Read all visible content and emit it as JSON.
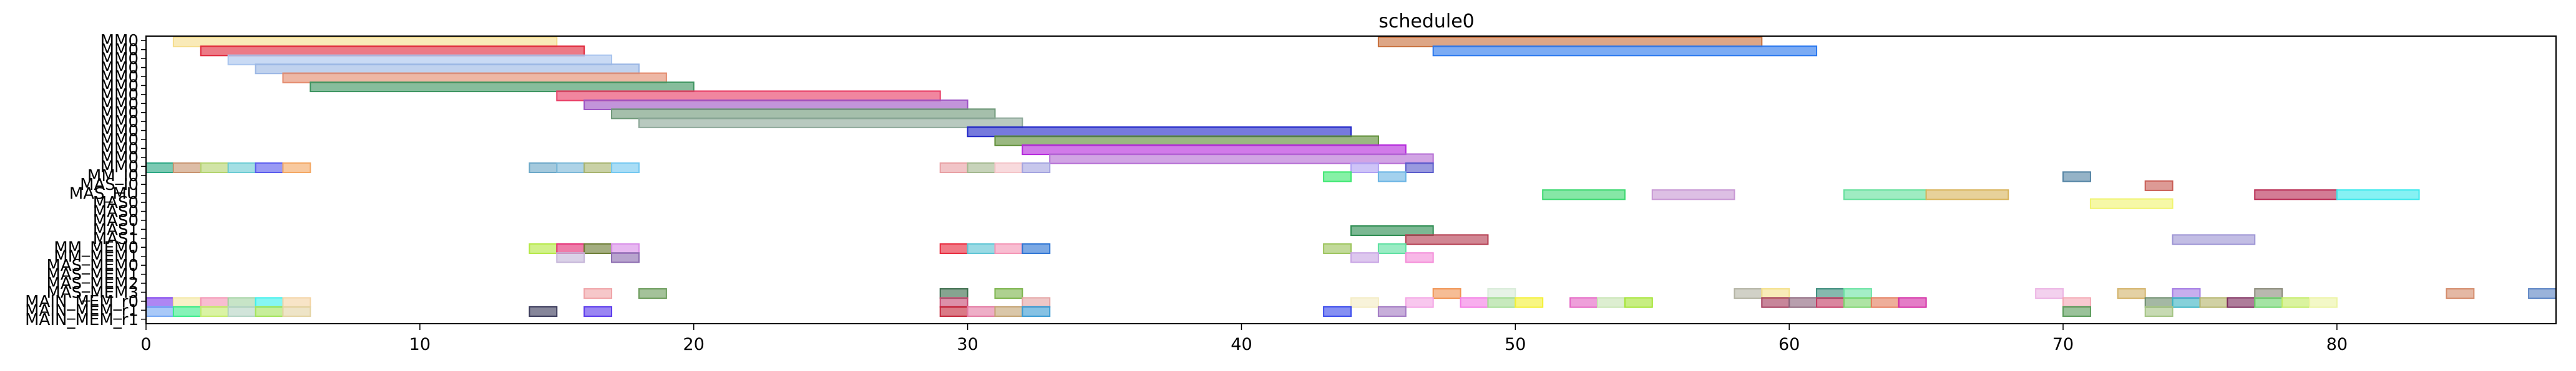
{
  "chart_data": {
    "type": "gantt",
    "title": "schedule0",
    "xlabel": "",
    "ylabel": "",
    "xlim": [
      0,
      88
    ],
    "x_ticks": [
      0,
      10,
      20,
      30,
      40,
      50,
      60,
      70,
      80
    ],
    "grid": false,
    "rows": [
      "MM0",
      "MM0",
      "MM0",
      "MM0",
      "MM0",
      "MM0",
      "MM0",
      "MM0",
      "MM0",
      "MM0",
      "MM0",
      "MM0",
      "MM0",
      "MM0",
      "MM0",
      "MM_I0",
      "MAS_I0",
      "MAS_MU",
      "MAS0",
      "MAS0",
      "MAS0",
      "MAS1",
      "MAS1",
      "MM_MEM0",
      "MM_MEM1",
      "MAS_MEM0",
      "MAS_MEM1",
      "MAS_MEM2",
      "MAS_MEM3",
      "MAIN_MEM_r0",
      "MAIN_MEM_r1",
      "MAIN_MEM_r1"
    ],
    "tasks": [
      {
        "row": 0,
        "start": 1,
        "end": 15,
        "color": "#f5dd8c"
      },
      {
        "row": 0,
        "start": 45,
        "end": 59,
        "color": "#c8703c"
      },
      {
        "row": 1,
        "start": 2,
        "end": 16,
        "color": "#e0283c"
      },
      {
        "row": 1,
        "start": 47,
        "end": 61,
        "color": "#2a78ee"
      },
      {
        "row": 2,
        "start": 3,
        "end": 17,
        "color": "#a8c4ee"
      },
      {
        "row": 3,
        "start": 4,
        "end": 18,
        "color": "#9ab6e4"
      },
      {
        "row": 4,
        "start": 5,
        "end": 19,
        "color": "#e48a6c"
      },
      {
        "row": 5,
        "start": 6,
        "end": 20,
        "color": "#3c9460"
      },
      {
        "row": 6,
        "start": 15,
        "end": 29,
        "color": "#e83c64"
      },
      {
        "row": 7,
        "start": 16,
        "end": 30,
        "color": "#9c52c4"
      },
      {
        "row": 8,
        "start": 17,
        "end": 31,
        "color": "#6e9878"
      },
      {
        "row": 9,
        "start": 18,
        "end": 32,
        "color": "#8ca898"
      },
      {
        "row": 10,
        "start": 30,
        "end": 44,
        "color": "#2228c8"
      },
      {
        "row": 11,
        "start": 31,
        "end": 45,
        "color": "#5c8c34"
      },
      {
        "row": 12,
        "start": 32,
        "end": 46,
        "color": "#b428dc"
      },
      {
        "row": 13,
        "start": 33,
        "end": 47,
        "color": "#b46cd4"
      },
      {
        "row": 14,
        "start": 0,
        "end": 1,
        "color": "#2ca884"
      },
      {
        "row": 14,
        "start": 1,
        "end": 2,
        "color": "#c89470"
      },
      {
        "row": 14,
        "start": 2,
        "end": 3,
        "color": "#b4d470"
      },
      {
        "row": 14,
        "start": 3,
        "end": 4,
        "color": "#6cccd4"
      },
      {
        "row": 14,
        "start": 4,
        "end": 5,
        "color": "#5a5cee"
      },
      {
        "row": 14,
        "start": 5,
        "end": 6,
        "color": "#f4a864"
      },
      {
        "row": 14,
        "start": 14,
        "end": 15,
        "color": "#6ca8c8"
      },
      {
        "row": 14,
        "start": 15,
        "end": 16,
        "color": "#7cb8d8"
      },
      {
        "row": 14,
        "start": 16,
        "end": 17,
        "color": "#a8b470"
      },
      {
        "row": 14,
        "start": 17,
        "end": 18,
        "color": "#74c8f0"
      },
      {
        "row": 14,
        "start": 29,
        "end": 30,
        "color": "#e8a0a4"
      },
      {
        "row": 14,
        "start": 30,
        "end": 31,
        "color": "#a4b890"
      },
      {
        "row": 14,
        "start": 31,
        "end": 32,
        "color": "#f4c4c8"
      },
      {
        "row": 14,
        "start": 32,
        "end": 33,
        "color": "#a4a4e0"
      },
      {
        "row": 14,
        "start": 44,
        "end": 45,
        "color": "#b0a0f4"
      },
      {
        "row": 14,
        "start": 46,
        "end": 47,
        "color": "#5a5ccc"
      },
      {
        "row": 15,
        "start": 70,
        "end": 71,
        "color": "#5484a4"
      },
      {
        "row": 15,
        "start": 45,
        "end": 46,
        "color": "#6ab4e4"
      },
      {
        "row": 15,
        "start": 43,
        "end": 44,
        "color": "#3ce870"
      },
      {
        "row": 16,
        "start": 73,
        "end": 74,
        "color": "#c85c54"
      },
      {
        "row": 17,
        "start": 51,
        "end": 54,
        "color": "#3cd870"
      },
      {
        "row": 17,
        "start": 55,
        "end": 58,
        "color": "#c898d4"
      },
      {
        "row": 17,
        "start": 62,
        "end": 65,
        "color": "#64e09c"
      },
      {
        "row": 17,
        "start": 65,
        "end": 68,
        "color": "#d8b45c"
      },
      {
        "row": 17,
        "start": 77,
        "end": 80,
        "color": "#b82c54"
      },
      {
        "row": 17,
        "start": 80,
        "end": 83,
        "color": "#3ce8ec"
      },
      {
        "row": 18,
        "start": 71,
        "end": 74,
        "color": "#f0f470"
      },
      {
        "row": 21,
        "start": 44,
        "end": 47,
        "color": "#2c8c50"
      },
      {
        "row": 22,
        "start": 46,
        "end": 49,
        "color": "#b43c50"
      },
      {
        "row": 22,
        "start": 74,
        "end": 77,
        "color": "#9c94d4"
      },
      {
        "row": 23,
        "start": 14,
        "end": 15,
        "color": "#b4e844"
      },
      {
        "row": 23,
        "start": 15,
        "end": 16,
        "color": "#e42c74"
      },
      {
        "row": 23,
        "start": 16,
        "end": 17,
        "color": "#6c7c34"
      },
      {
        "row": 23,
        "start": 17,
        "end": 18,
        "color": "#d88ce8"
      },
      {
        "row": 23,
        "start": 29,
        "end": 30,
        "color": "#e8283c"
      },
      {
        "row": 23,
        "start": 30,
        "end": 31,
        "color": "#5cc4d4"
      },
      {
        "row": 23,
        "start": 31,
        "end": 32,
        "color": "#f494b4"
      },
      {
        "row": 23,
        "start": 32,
        "end": 33,
        "color": "#2c74d4"
      },
      {
        "row": 23,
        "start": 43,
        "end": 44,
        "color": "#9cc45c"
      },
      {
        "row": 23,
        "start": 45,
        "end": 46,
        "color": "#5ce0a0"
      },
      {
        "row": 24,
        "start": 15,
        "end": 16,
        "color": "#c4b4d8"
      },
      {
        "row": 24,
        "start": 17,
        "end": 18,
        "color": "#8c6cb0"
      },
      {
        "row": 24,
        "start": 44,
        "end": 45,
        "color": "#c8a4e4"
      },
      {
        "row": 24,
        "start": 46,
        "end": 47,
        "color": "#f48cd8"
      },
      {
        "row": 28,
        "start": 16,
        "end": 17,
        "color": "#f0a4a8"
      },
      {
        "row": 28,
        "start": 18,
        "end": 19,
        "color": "#6c9c5c"
      },
      {
        "row": 28,
        "start": 29,
        "end": 30,
        "color": "#3c6c4c"
      },
      {
        "row": 28,
        "start": 31,
        "end": 32,
        "color": "#7cb44c"
      },
      {
        "row": 28,
        "start": 47,
        "end": 48,
        "color": "#f09454"
      },
      {
        "row": 28,
        "start": 49,
        "end": 50,
        "color": "#d8ecd8"
      },
      {
        "row": 28,
        "start": 58,
        "end": 59,
        "color": "#b4b4a4"
      },
      {
        "row": 28,
        "start": 59,
        "end": 60,
        "color": "#f4e08c"
      },
      {
        "row": 28,
        "start": 61,
        "end": 62,
        "color": "#3c8c7c"
      },
      {
        "row": 28,
        "start": 62,
        "end": 63,
        "color": "#6ce4a4"
      },
      {
        "row": 28,
        "start": 69,
        "end": 70,
        "color": "#ecb4e4"
      },
      {
        "row": 28,
        "start": 72,
        "end": 73,
        "color": "#d4b46c"
      },
      {
        "row": 28,
        "start": 74,
        "end": 75,
        "color": "#a47ce4"
      },
      {
        "row": 28,
        "start": 77,
        "end": 78,
        "color": "#8c8c7c"
      },
      {
        "row": 28,
        "start": 84,
        "end": 85,
        "color": "#d48c6c"
      },
      {
        "row": 28,
        "start": 87,
        "end": 88,
        "color": "#5c84c4"
      },
      {
        "row": 29,
        "start": 0,
        "end": 1,
        "color": "#7c3cec"
      },
      {
        "row": 29,
        "start": 1,
        "end": 2,
        "color": "#f4e8a4"
      },
      {
        "row": 29,
        "start": 2,
        "end": 3,
        "color": "#f494b4"
      },
      {
        "row": 29,
        "start": 3,
        "end": 4,
        "color": "#a4d4a4"
      },
      {
        "row": 29,
        "start": 4,
        "end": 5,
        "color": "#3cf0ec"
      },
      {
        "row": 29,
        "start": 5,
        "end": 6,
        "color": "#f4d4a4"
      },
      {
        "row": 29,
        "start": 29,
        "end": 30,
        "color": "#c84c74"
      },
      {
        "row": 29,
        "start": 32,
        "end": 33,
        "color": "#e4a4a4"
      },
      {
        "row": 29,
        "start": 44,
        "end": 45,
        "color": "#f4ecc4"
      },
      {
        "row": 29,
        "start": 46,
        "end": 47,
        "color": "#f4a4e4"
      },
      {
        "row": 29,
        "start": 48,
        "end": 49,
        "color": "#f47ce4"
      },
      {
        "row": 29,
        "start": 49,
        "end": 50,
        "color": "#a4dc94"
      },
      {
        "row": 29,
        "start": 50,
        "end": 51,
        "color": "#f4f034"
      },
      {
        "row": 29,
        "start": 52,
        "end": 53,
        "color": "#e464c4"
      },
      {
        "row": 29,
        "start": 53,
        "end": 54,
        "color": "#c8e4b4"
      },
      {
        "row": 29,
        "start": 54,
        "end": 55,
        "color": "#a4e434"
      },
      {
        "row": 29,
        "start": 59,
        "end": 60,
        "color": "#a43c5c"
      },
      {
        "row": 29,
        "start": 60,
        "end": 61,
        "color": "#8c647c"
      },
      {
        "row": 29,
        "start": 61,
        "end": 62,
        "color": "#c43c64"
      },
      {
        "row": 29,
        "start": 62,
        "end": 63,
        "color": "#7cd46c"
      },
      {
        "row": 29,
        "start": 63,
        "end": 64,
        "color": "#e47c5c"
      },
      {
        "row": 29,
        "start": 64,
        "end": 65,
        "color": "#d42ca4"
      },
      {
        "row": 29,
        "start": 70,
        "end": 71,
        "color": "#f4a8b4"
      },
      {
        "row": 29,
        "start": 73,
        "end": 74,
        "color": "#6c8c6c"
      },
      {
        "row": 29,
        "start": 74,
        "end": 75,
        "color": "#3cb4c4"
      },
      {
        "row": 29,
        "start": 75,
        "end": 76,
        "color": "#b4b46c"
      },
      {
        "row": 29,
        "start": 76,
        "end": 77,
        "color": "#7c2c5c"
      },
      {
        "row": 29,
        "start": 77,
        "end": 78,
        "color": "#6cd46c"
      },
      {
        "row": 29,
        "start": 78,
        "end": 79,
        "color": "#c4ec64"
      },
      {
        "row": 29,
        "start": 79,
        "end": 80,
        "color": "#ecf4a4"
      },
      {
        "row": 30,
        "start": 0,
        "end": 1,
        "color": "#74a8f4"
      },
      {
        "row": 30,
        "start": 1,
        "end": 2,
        "color": "#3cec8c"
      },
      {
        "row": 30,
        "start": 2,
        "end": 3,
        "color": "#c4ec6c"
      },
      {
        "row": 30,
        "start": 3,
        "end": 4,
        "color": "#b4d4c4"
      },
      {
        "row": 30,
        "start": 4,
        "end": 5,
        "color": "#a4e45c"
      },
      {
        "row": 30,
        "start": 5,
        "end": 6,
        "color": "#e4d4a4"
      },
      {
        "row": 30,
        "start": 14,
        "end": 15,
        "color": "#3c3c5c"
      },
      {
        "row": 30,
        "start": 16,
        "end": 17,
        "color": "#5c3cec"
      },
      {
        "row": 30,
        "start": 29,
        "end": 30,
        "color": "#c4283c"
      },
      {
        "row": 30,
        "start": 30,
        "end": 31,
        "color": "#e47ca4"
      },
      {
        "row": 30,
        "start": 31,
        "end": 32,
        "color": "#c4a474"
      },
      {
        "row": 30,
        "start": 32,
        "end": 33,
        "color": "#3c9cd4"
      },
      {
        "row": 30,
        "start": 43,
        "end": 44,
        "color": "#3c4cec"
      },
      {
        "row": 30,
        "start": 45,
        "end": 46,
        "color": "#a47cc4"
      },
      {
        "row": 30,
        "start": 70,
        "end": 71,
        "color": "#5c9c5c"
      },
      {
        "row": 30,
        "start": 73,
        "end": 74,
        "color": "#a4c484"
      }
    ]
  }
}
